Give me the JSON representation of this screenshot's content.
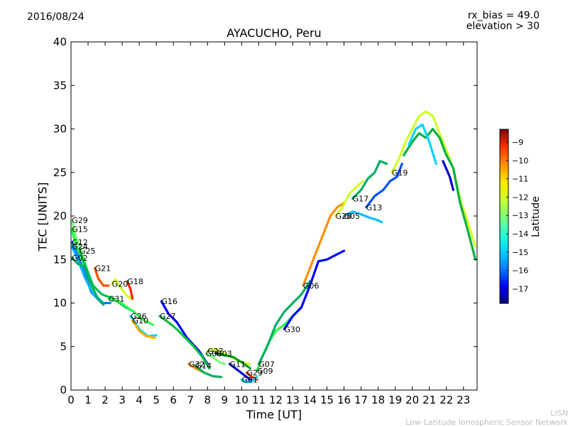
{
  "header": {
    "date": "2016/08/24",
    "rx_bias": "rx_bias = 49.0",
    "elevation": "elevation > 30"
  },
  "footer": {
    "credit_line1": "LISN",
    "credit_line2": "Low-Latitude Ionospheric Sensor Network"
  },
  "chart_data": {
    "type": "scatter",
    "title": "AYACUCHO, Peru",
    "xlabel": "Time [UT]",
    "ylabel": "TEC [UNITS]",
    "xlim": [
      0,
      23.8
    ],
    "ylim": [
      0,
      40
    ],
    "xticks": [
      0,
      1,
      2,
      3,
      4,
      5,
      6,
      7,
      8,
      9,
      10,
      11,
      12,
      13,
      14,
      15,
      16,
      17,
      18,
      19,
      20,
      21,
      22,
      23
    ],
    "yticks": [
      0,
      5,
      10,
      15,
      20,
      25,
      30,
      35,
      40
    ],
    "grid": false,
    "colorbar": {
      "label": "Latitude",
      "range": [
        -17.8,
        -8.3
      ],
      "ticks": [
        -17,
        -16,
        -15,
        -14,
        -13,
        -12,
        -11,
        -10,
        -9
      ],
      "colors": [
        "#00007f",
        "#0000ff",
        "#007fff",
        "#00d4ff",
        "#29ffce",
        "#7dff7a",
        "#ceff29",
        "#ffe600",
        "#ff8c00",
        "#ff3000",
        "#7f0000"
      ]
    },
    "series": [
      {
        "name": "G29",
        "color": "#7dff7a",
        "points": [
          [
            0.05,
            19.5
          ],
          [
            0.3,
            17.5
          ],
          [
            0.7,
            15.5
          ],
          [
            1.0,
            13.5
          ],
          [
            1.2,
            12
          ]
        ]
      },
      {
        "name": "G15",
        "color": "#29ff50",
        "points": [
          [
            0.05,
            18.5
          ],
          [
            0.3,
            16.5
          ],
          [
            0.7,
            14.8
          ],
          [
            1.1,
            13
          ]
        ]
      },
      {
        "name": "G12",
        "color": "#0080ff",
        "points": [
          [
            0.05,
            17
          ],
          [
            0.4,
            15.5
          ],
          [
            0.8,
            13.5
          ],
          [
            1.2,
            11.2
          ],
          [
            1.8,
            10
          ],
          [
            2.3,
            10
          ]
        ]
      },
      {
        "name": "G24",
        "color": "#00b0ff",
        "points": [
          [
            0.05,
            16.5
          ],
          [
            0.4,
            15
          ],
          [
            0.8,
            13
          ],
          [
            1.3,
            11
          ],
          [
            1.8,
            10.2
          ]
        ]
      },
      {
        "name": "G25",
        "color": "#00c050",
        "points": [
          [
            0.5,
            16
          ],
          [
            0.9,
            14
          ],
          [
            1.3,
            12
          ],
          [
            1.8,
            11
          ],
          [
            2.5,
            10.5
          ],
          [
            3.2,
            9.5
          ],
          [
            3.7,
            9
          ]
        ]
      },
      {
        "name": "G02",
        "color": "#00b060",
        "points": [
          [
            0.05,
            15.2
          ],
          [
            0.4,
            14.5
          ],
          [
            0.8,
            14.2
          ],
          [
            1.1,
            12.5
          ],
          [
            1.5,
            10.8
          ],
          [
            1.9,
            9.8
          ]
        ]
      },
      {
        "name": "G21",
        "color": "#ff5000",
        "points": [
          [
            1.4,
            14
          ],
          [
            1.6,
            12.8
          ],
          [
            1.9,
            12
          ],
          [
            2.2,
            12
          ]
        ]
      },
      {
        "name": "G20",
        "color": "#ceff29",
        "points": [
          [
            2.4,
            12.2
          ],
          [
            2.6,
            12.7
          ],
          [
            2.9,
            11.8
          ],
          [
            3.2,
            11
          ],
          [
            3.5,
            10.5
          ]
        ]
      },
      {
        "name": "G18",
        "color": "#ff2000",
        "points": [
          [
            3.3,
            12.5
          ],
          [
            3.5,
            11.5
          ],
          [
            3.6,
            10.5
          ]
        ]
      },
      {
        "name": "G31",
        "color": "#29ff50",
        "points": [
          [
            2.2,
            10.5
          ],
          [
            2.8,
            10.2
          ],
          [
            3.3,
            9.5
          ],
          [
            3.8,
            8.8
          ],
          [
            4.3,
            8
          ],
          [
            4.8,
            7.5
          ]
        ]
      },
      {
        "name": "G26",
        "color": "#00d4ff",
        "points": [
          [
            3.5,
            8.5
          ],
          [
            4.0,
            7
          ],
          [
            4.5,
            6.2
          ],
          [
            5.0,
            6.3
          ]
        ]
      },
      {
        "name": "G10",
        "color": "#ffb000",
        "points": [
          [
            3.6,
            8
          ],
          [
            4.0,
            6.8
          ],
          [
            4.4,
            6.2
          ],
          [
            4.9,
            6
          ]
        ]
      },
      {
        "name": "G16",
        "color": "#0000ff",
        "points": [
          [
            5.3,
            10.2
          ],
          [
            5.7,
            8.8
          ],
          [
            6.2,
            7.8
          ],
          [
            6.8,
            6
          ],
          [
            7.5,
            4.5
          ],
          [
            8.0,
            3
          ]
        ]
      },
      {
        "name": "G27",
        "color": "#00c040",
        "points": [
          [
            5.2,
            8.5
          ],
          [
            5.7,
            7.8
          ],
          [
            6.2,
            7
          ],
          [
            6.7,
            6
          ],
          [
            7.2,
            5
          ],
          [
            7.7,
            3.8
          ],
          [
            8.1,
            2.5
          ]
        ]
      },
      {
        "name": "G22",
        "color": "#ceff29",
        "points": [
          [
            8.0,
            4.5
          ],
          [
            8.5,
            4.7
          ],
          [
            9.0,
            4.2
          ],
          [
            9.5,
            3.7
          ],
          [
            10.0,
            3.2
          ],
          [
            10.5,
            3
          ]
        ]
      },
      {
        "name": "G08",
        "color": "#7dff7a",
        "points": [
          [
            7.9,
            4.2
          ],
          [
            8.3,
            3.8
          ],
          [
            8.7,
            3.2
          ],
          [
            9.0,
            3
          ]
        ]
      },
      {
        "name": "G32",
        "color": "#ff8c00",
        "points": [
          [
            6.9,
            3
          ],
          [
            7.3,
            2.5
          ],
          [
            7.8,
            2
          ]
        ]
      },
      {
        "name": "G14",
        "color": "#00b060",
        "points": [
          [
            7.3,
            2.8
          ],
          [
            7.8,
            2
          ],
          [
            8.3,
            1.6
          ],
          [
            8.8,
            1.5
          ]
        ]
      },
      {
        "name": "G03",
        "color": "#00a020",
        "points": [
          [
            8.5,
            4.2
          ],
          [
            9.0,
            4
          ],
          [
            9.5,
            3.8
          ],
          [
            10.0,
            3.2
          ],
          [
            10.5,
            2.5
          ]
        ]
      },
      {
        "name": "G11",
        "color": "#0000cc",
        "points": [
          [
            9.3,
            3
          ],
          [
            9.7,
            2.4
          ],
          [
            10.1,
            1.8
          ],
          [
            10.5,
            1.2
          ]
        ]
      },
      {
        "name": "G23",
        "color": "#ff3000",
        "points": [
          [
            10.3,
            2
          ],
          [
            10.6,
            1.5
          ],
          [
            10.9,
            1.2
          ]
        ]
      },
      {
        "name": "G01",
        "color": "#00d4ff",
        "points": [
          [
            10.0,
            1.2
          ],
          [
            10.3,
            0.9
          ],
          [
            10.6,
            1.0
          ],
          [
            10.9,
            1.5
          ]
        ]
      },
      {
        "name": "G09",
        "color": "#29ff50",
        "points": [
          [
            10.9,
            2.2
          ],
          [
            11.2,
            3.8
          ],
          [
            11.6,
            5.5
          ],
          [
            12.0,
            6.8
          ],
          [
            12.5,
            7.5
          ],
          [
            13.0,
            8.5
          ],
          [
            13.5,
            9.5
          ]
        ]
      },
      {
        "name": "G07",
        "color": "#00b060",
        "points": [
          [
            11.0,
            3
          ],
          [
            11.5,
            5
          ],
          [
            12.0,
            7.5
          ],
          [
            12.5,
            9
          ],
          [
            13.0,
            10
          ],
          [
            13.5,
            11
          ],
          [
            14.0,
            12.5
          ]
        ]
      },
      {
        "name": "G30",
        "color": "#0000ff",
        "points": [
          [
            12.5,
            7
          ],
          [
            13.0,
            8.5
          ],
          [
            13.5,
            9.5
          ],
          [
            14.0,
            12
          ],
          [
            14.5,
            14.8
          ],
          [
            15.0,
            15
          ],
          [
            15.5,
            15.5
          ],
          [
            16.0,
            16
          ]
        ]
      },
      {
        "name": "G06",
        "color": "#ff9000",
        "points": [
          [
            13.6,
            12
          ],
          [
            14.0,
            14
          ],
          [
            14.4,
            16
          ],
          [
            14.8,
            18
          ],
          [
            15.2,
            20
          ],
          [
            15.6,
            21
          ],
          [
            16.0,
            21.5
          ]
        ]
      },
      {
        "name": "G28",
        "color": "#ceff29",
        "points": [
          [
            15.5,
            20
          ],
          [
            15.9,
            21
          ],
          [
            16.3,
            22.5
          ],
          [
            16.7,
            23.3
          ],
          [
            17.1,
            24
          ]
        ]
      },
      {
        "name": "G05",
        "color": "#00c0ff",
        "points": [
          [
            16.0,
            20
          ],
          [
            16.5,
            20.5
          ],
          [
            17.0,
            20.2
          ],
          [
            17.5,
            19.8
          ],
          [
            18.0,
            19.5
          ],
          [
            18.2,
            19.3
          ]
        ]
      },
      {
        "name": "G13",
        "color": "#0050ff",
        "points": [
          [
            17.3,
            21
          ],
          [
            17.8,
            22.3
          ],
          [
            18.3,
            23
          ],
          [
            18.7,
            24
          ],
          [
            19.1,
            24.5
          ],
          [
            19.4,
            26
          ]
        ]
      },
      {
        "name": "G17",
        "color": "#00b060",
        "points": [
          [
            16.5,
            22
          ],
          [
            17.0,
            23
          ],
          [
            17.4,
            24.3
          ],
          [
            17.8,
            25
          ],
          [
            18.1,
            26.3
          ],
          [
            18.5,
            26
          ]
        ]
      },
      {
        "name": "G19",
        "color": "#ceff29",
        "points": [
          [
            18.8,
            25
          ],
          [
            19.2,
            26.5
          ],
          [
            19.6,
            28.5
          ],
          [
            20.0,
            30
          ],
          [
            20.4,
            31.5
          ],
          [
            20.8,
            32
          ],
          [
            21.2,
            31.5
          ],
          [
            21.6,
            29.5
          ],
          [
            22.0,
            27.5
          ],
          [
            22.4,
            25.5
          ],
          [
            22.8,
            22
          ],
          [
            23.3,
            19
          ],
          [
            23.7,
            16.5
          ]
        ]
      },
      {
        "name": "",
        "color": "#00b040",
        "points": [
          [
            19.5,
            27
          ],
          [
            20.0,
            28.5
          ],
          [
            20.4,
            29.5
          ],
          [
            20.8,
            29
          ],
          [
            21.2,
            30
          ],
          [
            21.6,
            29
          ],
          [
            22.0,
            27
          ],
          [
            22.4,
            25.5
          ],
          [
            22.8,
            21.5
          ],
          [
            23.3,
            18
          ],
          [
            23.7,
            15
          ]
        ]
      },
      {
        "name": "",
        "color": "#00d4ff",
        "points": [
          [
            19.8,
            28.2
          ],
          [
            20.2,
            30
          ],
          [
            20.6,
            30.5
          ],
          [
            21.0,
            28.5
          ],
          [
            21.4,
            26
          ]
        ]
      },
      {
        "name": "",
        "color": "#0000cc",
        "points": [
          [
            21.8,
            26.3
          ],
          [
            22.2,
            24.5
          ],
          [
            22.4,
            23
          ]
        ]
      }
    ]
  }
}
